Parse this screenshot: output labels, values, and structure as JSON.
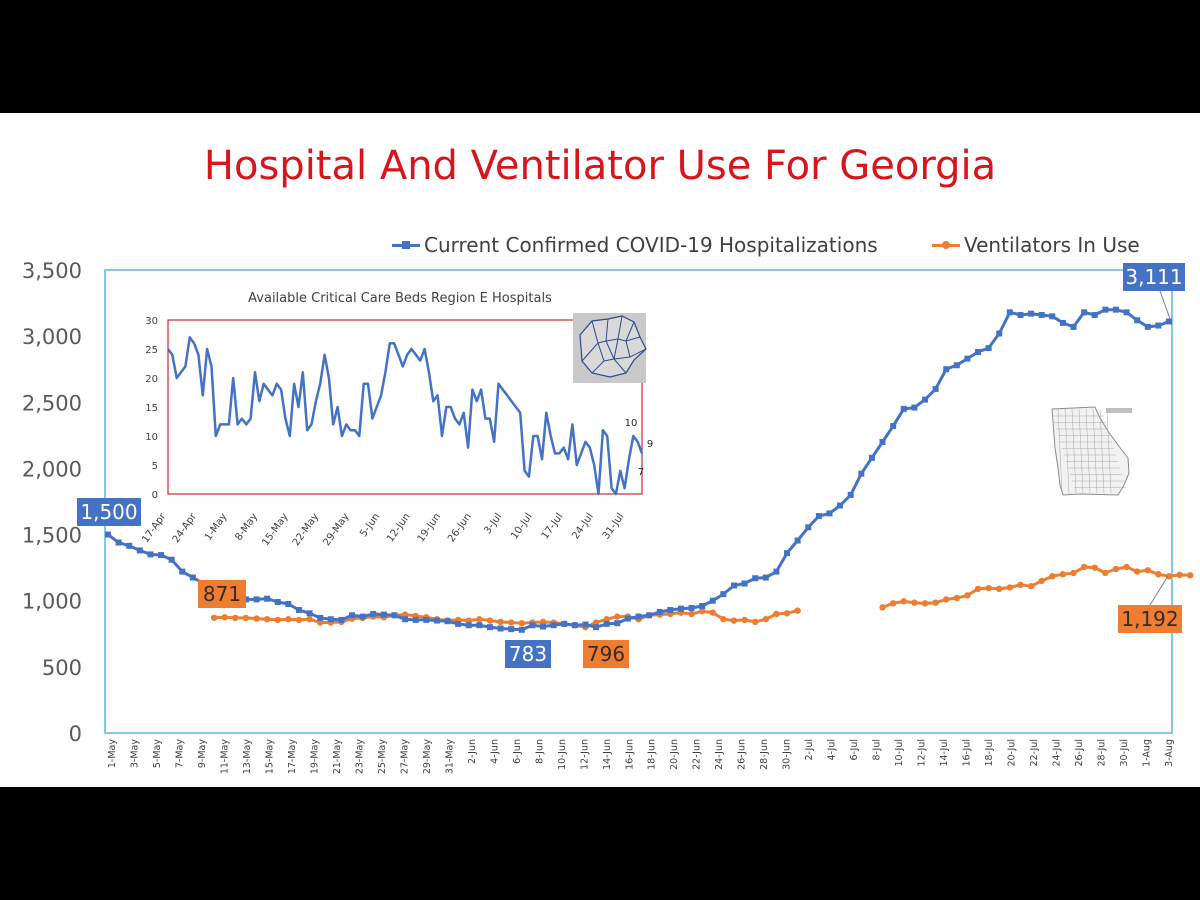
{
  "title": "Hospital And Ventilator Use For Georgia",
  "legend": {
    "hosp_label": "Current Confirmed COVID-19 Hospitalizations",
    "vent_label": "Ventilators In Use"
  },
  "colors": {
    "title": "#d9151b",
    "hosp": "#4472c4",
    "vent": "#ed7d31",
    "plot_border": "#5bb8e0",
    "inset_border": "#c00000",
    "callout_text": "#ffffff",
    "vent_callout_text": "#3a2a1a"
  },
  "chart_data": [
    {
      "type": "line",
      "title": "Hospital And Ventilator Use For Georgia",
      "ylim": [
        0,
        3500
      ],
      "yticks": [
        "0",
        "500",
        "1,000",
        "1,500",
        "2,000",
        "2,500",
        "3,000",
        "3,500"
      ],
      "xtick_labels": [
        "1-May",
        "3-May",
        "5-May",
        "7-May",
        "9-May",
        "11-May",
        "13-May",
        "15-May",
        "17-May",
        "19-May",
        "21-May",
        "23-May",
        "25-May",
        "27-May",
        "29-May",
        "31-May",
        "2-Jun",
        "4-Jun",
        "6-Jun",
        "8-Jun",
        "10-Jun",
        "12-Jun",
        "14-Jun",
        "16-Jun",
        "18-Jun",
        "20-Jun",
        "22-Jun",
        "24-Jun",
        "26-Jun",
        "28-Jun",
        "30-Jun",
        "2-Jul",
        "4-Jul",
        "6-Jul",
        "8-Jul",
        "10-Jul",
        "12-Jul",
        "14-Jul",
        "16-Jul",
        "18-Jul",
        "20-Jul",
        "22-Jul",
        "24-Jul",
        "26-Jul",
        "28-Jul",
        "30-Jul",
        "1-Aug",
        "3-Aug"
      ],
      "grid": false,
      "legend_position": "top",
      "series": [
        {
          "name": "Current Confirmed COVID-19 Hospitalizations",
          "values": [
            1500,
            1440,
            1415,
            1380,
            1350,
            1345,
            1310,
            1220,
            1175,
            1130,
            1095,
            1060,
            1035,
            1010,
            1010,
            1015,
            990,
            975,
            930,
            905,
            870,
            860,
            855,
            890,
            880,
            900,
            895,
            890,
            860,
            855,
            855,
            850,
            845,
            825,
            815,
            815,
            800,
            790,
            785,
            780,
            815,
            805,
            815,
            825,
            815,
            820,
            800,
            825,
            830,
            865,
            880,
            890,
            915,
            930,
            940,
            945,
            960,
            1000,
            1050,
            1115,
            1130,
            1170,
            1175,
            1220,
            1360,
            1455,
            1555,
            1640,
            1660,
            1720,
            1800,
            1960,
            2080,
            2200,
            2320,
            2450,
            2460,
            2520,
            2600,
            2750,
            2780,
            2830,
            2880,
            2910,
            3020,
            3180,
            3160,
            3170,
            3160,
            3150,
            3100,
            3070,
            3180,
            3160,
            3200,
            3200,
            3180,
            3120,
            3070,
            3080,
            3111
          ]
        },
        {
          "name": "Ventilators In Use",
          "values": [
            null,
            null,
            null,
            null,
            null,
            null,
            null,
            null,
            null,
            null,
            871,
            875,
            870,
            870,
            865,
            860,
            855,
            860,
            855,
            860,
            835,
            835,
            840,
            865,
            870,
            880,
            875,
            890,
            895,
            885,
            875,
            860,
            850,
            855,
            850,
            860,
            850,
            840,
            835,
            830,
            835,
            840,
            835,
            825,
            815,
            800,
            835,
            860,
            880,
            880,
            860,
            890,
            895,
            900,
            910,
            900,
            920,
            910,
            860,
            850,
            855,
            840,
            860,
            900,
            905,
            925,
            null,
            null,
            null,
            null,
            null,
            null,
            null,
            950,
            980,
            995,
            985,
            980,
            985,
            1010,
            1020,
            1040,
            1090,
            1095,
            1090,
            1100,
            1120,
            1110,
            1150,
            1185,
            1200,
            1210,
            1255,
            1250,
            1210,
            1240,
            1255,
            1220,
            1230,
            1200,
            1185,
            1195,
            1192
          ]
        }
      ],
      "callouts": [
        {
          "label": "1,500",
          "series": "hosp"
        },
        {
          "label": "871",
          "series": "vent"
        },
        {
          "label": "783",
          "series": "hosp"
        },
        {
          "label": "796",
          "series": "vent"
        },
        {
          "label": "3,111",
          "series": "hosp"
        },
        {
          "label": "1,192",
          "series": "vent"
        }
      ]
    },
    {
      "type": "line",
      "title": "Available Critical Care Beds Region E Hospitals",
      "ylim": [
        0,
        30
      ],
      "yticks": [
        "0",
        "5",
        "10",
        "15",
        "20",
        "25",
        "30"
      ],
      "xtick_labels": [
        "17-Apr",
        "24-Apr",
        "1-May",
        "8-May",
        "15-May",
        "22-May",
        "29-May",
        "5-Jun",
        "12-Jun",
        "19-Jun",
        "26-Jun",
        "3-Jul",
        "10-Jul",
        "17-Jul",
        "24-Jul",
        "31-Jul"
      ],
      "end_labels": [
        "10",
        "9",
        "7"
      ],
      "series": [
        {
          "values": [
            25,
            24,
            20,
            21,
            22,
            27,
            26,
            24,
            17,
            25,
            22,
            10,
            12,
            12,
            12,
            20,
            12,
            13,
            12,
            13,
            21,
            16,
            19,
            18,
            17,
            19,
            18,
            13,
            10,
            19,
            15,
            21,
            11,
            12,
            16,
            19,
            24,
            20,
            12,
            15,
            10,
            12,
            11,
            11,
            10,
            19,
            19,
            13,
            15,
            17,
            21,
            26,
            26,
            24,
            22,
            24,
            25,
            24,
            23,
            25,
            21,
            16,
            17,
            10,
            15,
            15,
            13,
            12,
            14,
            8,
            18,
            16,
            18,
            13,
            13,
            9,
            19,
            18,
            17,
            16,
            15,
            14,
            4,
            3,
            10,
            10,
            6,
            14,
            10,
            7,
            7,
            8,
            6,
            12,
            5,
            7,
            9,
            8,
            5,
            0,
            11,
            10,
            1,
            0,
            4,
            1,
            6,
            10,
            9,
            7
          ]
        }
      ]
    }
  ]
}
